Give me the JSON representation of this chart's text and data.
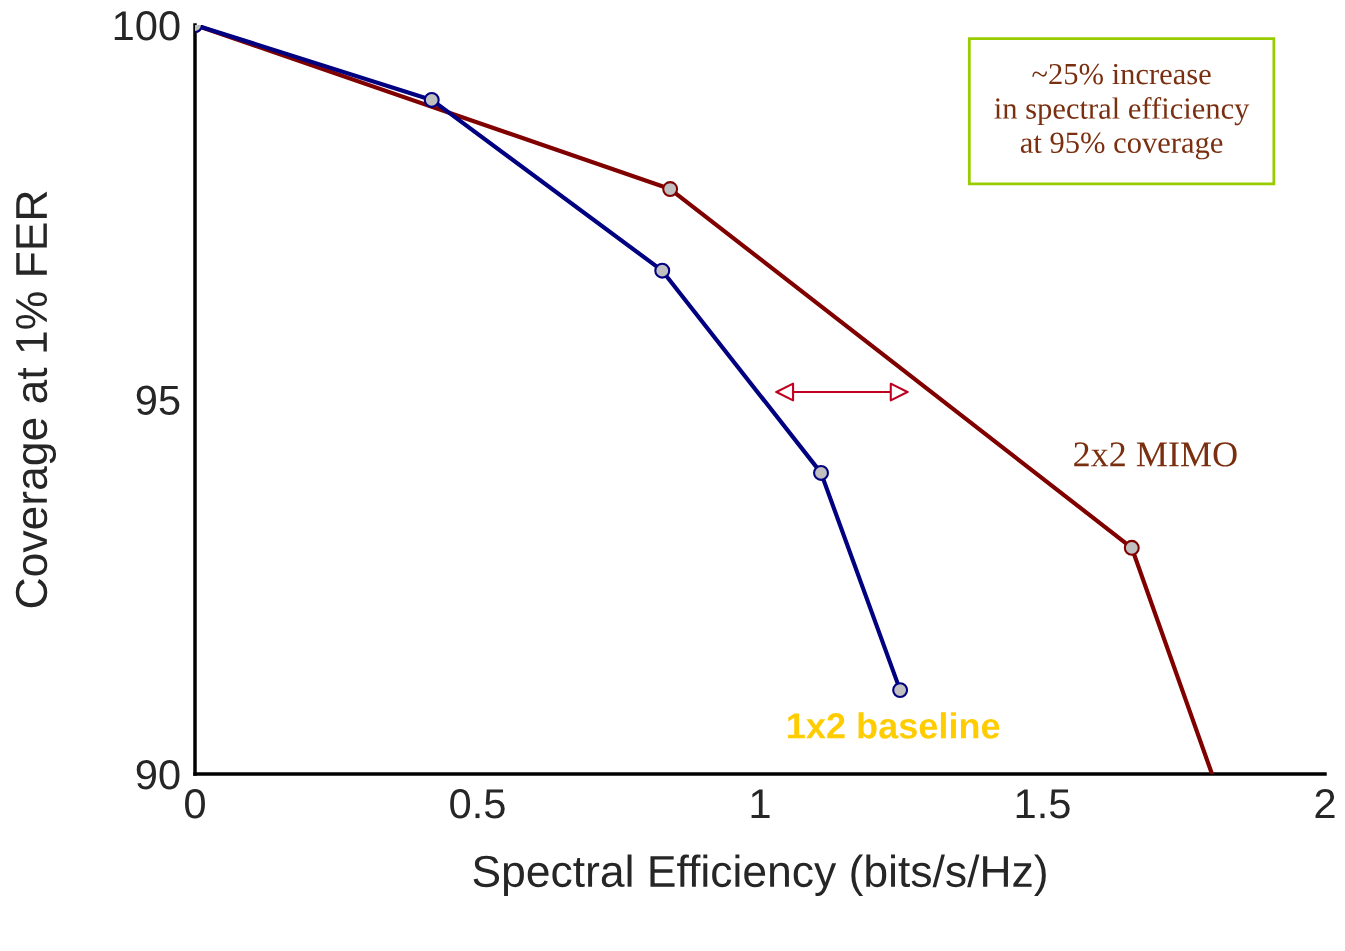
{
  "chart_data": {
    "type": "line",
    "xlabel": "Spectral Efficiency (bits/s/Hz)",
    "ylabel": "Coverage at 1% FER",
    "xlim": [
      0,
      2
    ],
    "xticks": [
      0,
      0.5,
      1,
      1.5,
      2
    ],
    "ylim": [
      90,
      100
    ],
    "yticks": [
      90,
      95,
      100
    ],
    "marker": "circle",
    "line_style": "solid",
    "grid": false,
    "legend": false,
    "series": [
      {
        "name": "1x2 baseline",
        "color": "#000080",
        "x": [
          0,
          0.419,
          0.827,
          1.108,
          1.248
        ],
        "values": [
          100,
          99.0,
          96.72,
          94.02,
          91.12
        ]
      },
      {
        "name": "2x2 MIMO",
        "color": "#800000",
        "x": [
          0,
          0.841,
          1.658,
          1.8
        ],
        "values": [
          100,
          97.81,
          93.02,
          90
        ]
      }
    ],
    "annotations": [
      "~25% increase\nin spectral efficiency\nat 95% coverage"
    ]
  }
}
